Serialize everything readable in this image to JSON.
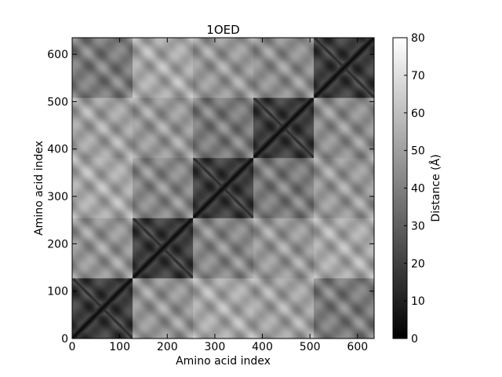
{
  "chart_data": {
    "type": "heatmap",
    "title": "1OED",
    "xlabel": "Amino acid index",
    "ylabel": "Amino acid index",
    "xlim": [
      0,
      635
    ],
    "ylim": [
      0,
      635
    ],
    "xticks": [
      0,
      100,
      200,
      300,
      400,
      500,
      600
    ],
    "yticks": [
      0,
      100,
      200,
      300,
      400,
      500,
      600
    ],
    "colorbar": {
      "label": "Distance (Å)",
      "range": [
        0,
        80
      ],
      "ticks": [
        0,
        10,
        20,
        30,
        40,
        50,
        60,
        70,
        80
      ],
      "colormap": "gray",
      "low_color": "#000000",
      "high_color": "#ffffff"
    },
    "blocks": {
      "boundaries": [
        0,
        127,
        254,
        381,
        508,
        635
      ],
      "mean_distance_matrix": [
        [
          20,
          46,
          52,
          50,
          38
        ],
        [
          46,
          20,
          42,
          47,
          52
        ],
        [
          52,
          42,
          20,
          38,
          47
        ],
        [
          50,
          47,
          38,
          20,
          44
        ],
        [
          38,
          52,
          47,
          44,
          20
        ]
      ]
    },
    "diagonal_distance": 0,
    "grid": false
  }
}
